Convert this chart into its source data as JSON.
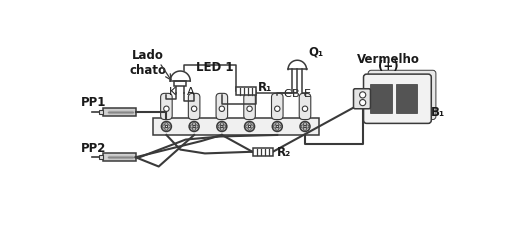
{
  "bg_color": "#ffffff",
  "line_color": "#3a3a3a",
  "text_color": "#1a1a1a",
  "labels": {
    "lado_chato": "Lado\nchato",
    "led1": "LED 1",
    "q1": "Q₁",
    "k": "K",
    "a": "A",
    "r1": "R₁",
    "c": "C",
    "b": "B",
    "e": "E",
    "pp1": "PP1",
    "pp2": "PP2",
    "vermelho": "Vermelho",
    "plus": "(+)",
    "r2": "R₂",
    "b1": "B₁"
  },
  "figsize": [
    5.2,
    2.39
  ],
  "dpi": 100,
  "xlim": [
    0,
    520
  ],
  "ylim": [
    0,
    239
  ]
}
